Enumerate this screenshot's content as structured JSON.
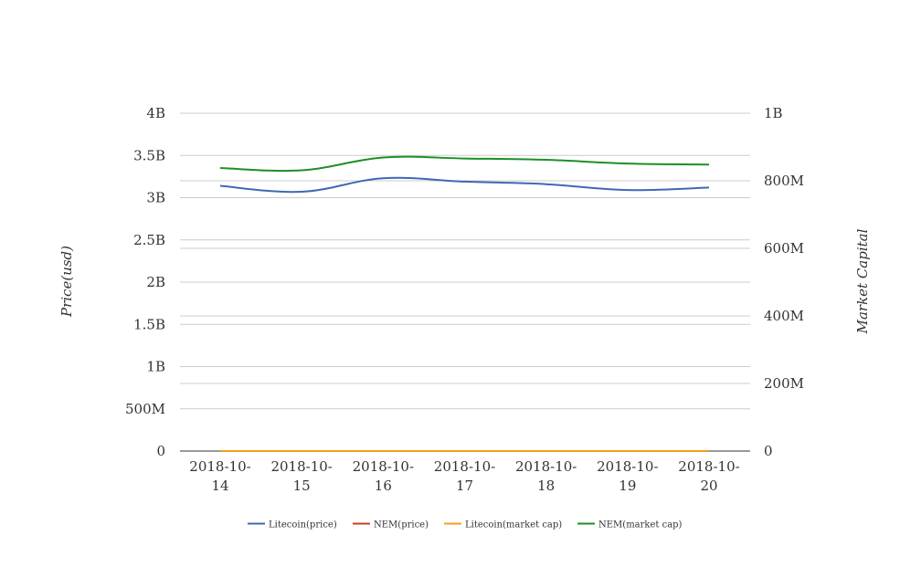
{
  "chart_data": {
    "type": "line",
    "x": [
      "2018-10-14",
      "2018-10-15",
      "2018-10-16",
      "2018-10-17",
      "2018-10-18",
      "2018-10-19",
      "2018-10-20"
    ],
    "x_tick_lines": [
      [
        "2018-10-",
        "14"
      ],
      [
        "2018-10-",
        "15"
      ],
      [
        "2018-10-",
        "16"
      ],
      [
        "2018-10-",
        "17"
      ],
      [
        "2018-10-",
        "18"
      ],
      [
        "2018-10-",
        "19"
      ],
      [
        "2018-10-",
        "20"
      ]
    ],
    "ylabel_left": "Price(usd)",
    "ylabel_right": "Market Capital",
    "ylim_left": [
      0,
      4000000000
    ],
    "ylim_right": [
      0,
      1000000000
    ],
    "yticks_left": [
      {
        "value": 0,
        "label": "0"
      },
      {
        "value": 500000000,
        "label": "500M"
      },
      {
        "value": 1000000000,
        "label": "1B"
      },
      {
        "value": 1500000000,
        "label": "1.5B"
      },
      {
        "value": 2000000000,
        "label": "2B"
      },
      {
        "value": 2500000000,
        "label": "2.5B"
      },
      {
        "value": 3000000000,
        "label": "3B"
      },
      {
        "value": 3500000000,
        "label": "3.5B"
      },
      {
        "value": 4000000000,
        "label": "4B"
      }
    ],
    "yticks_right": [
      {
        "value": 0,
        "label": "0"
      },
      {
        "value": 200000000,
        "label": "200M"
      },
      {
        "value": 400000000,
        "label": "400M"
      },
      {
        "value": 600000000,
        "label": "600M"
      },
      {
        "value": 800000000,
        "label": "800M"
      },
      {
        "value": 1000000000,
        "label": "1B"
      }
    ],
    "grid": true,
    "legend_position": "bottom",
    "series": [
      {
        "name": "Litecoin(price)",
        "axis": "left",
        "color": "#3f68b5",
        "values": [
          3140000000,
          3070000000,
          3230000000,
          3190000000,
          3160000000,
          3090000000,
          3120000000
        ]
      },
      {
        "name": "NEM(price)",
        "axis": "left",
        "color": "#c9401f",
        "values": [
          0.08,
          0.08,
          0.08,
          0.08,
          0.08,
          0.08,
          0.08
        ]
      },
      {
        "name": "Litecoin(market cap)",
        "axis": "right",
        "color": "#f59d1e",
        "values": [
          52,
          51,
          54,
          54,
          53,
          52,
          52
        ]
      },
      {
        "name": "NEM(market cap)",
        "axis": "right",
        "color": "#1e8f26",
        "values": [
          838000000,
          831000000,
          869000000,
          866000000,
          862000000,
          851000000,
          848000000
        ]
      }
    ]
  }
}
